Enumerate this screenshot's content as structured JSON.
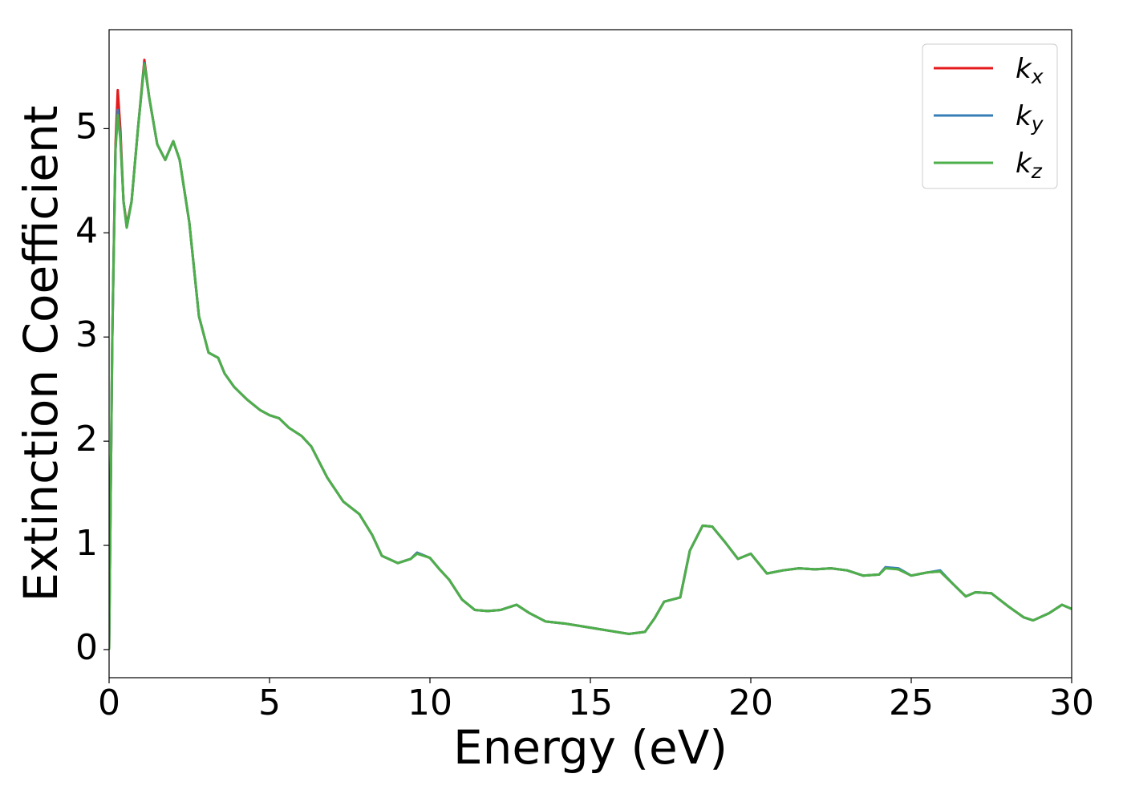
{
  "chart_data": {
    "type": "line",
    "x_label": "Energy (eV)",
    "y_label": "Extinction Coefficient",
    "x": [
      0,
      0.1,
      0.2,
      0.27,
      0.35,
      0.45,
      0.55,
      0.7,
      0.9,
      1.1,
      1.25,
      1.5,
      1.75,
      2.0,
      2.2,
      2.5,
      2.8,
      3.1,
      3.4,
      3.6,
      3.9,
      4.3,
      4.7,
      5.0,
      5.3,
      5.6,
      6.0,
      6.3,
      6.8,
      7.3,
      7.8,
      8.2,
      8.5,
      9.0,
      9.4,
      9.6,
      10.0,
      10.3,
      10.6,
      11.0,
      11.4,
      11.8,
      12.2,
      12.7,
      13.1,
      13.6,
      14.2,
      15.0,
      15.6,
      16.2,
      16.7,
      17.0,
      17.3,
      17.8,
      18.1,
      18.5,
      18.8,
      19.2,
      19.6,
      20.0,
      20.5,
      21.0,
      21.5,
      22.0,
      22.5,
      23.0,
      23.5,
      24.0,
      24.2,
      24.6,
      25.0,
      25.5,
      25.9,
      26.3,
      26.7,
      27.0,
      27.5,
      28.0,
      28.5,
      28.8,
      29.3,
      29.7,
      30.0
    ],
    "series": [
      {
        "name": "k",
        "subscript": "x",
        "color": "#e41a1c",
        "values": [
          0,
          3.0,
          4.85,
          5.37,
          5.0,
          4.3,
          4.08,
          4.3,
          5.0,
          5.66,
          5.3,
          4.85,
          4.7,
          4.88,
          4.7,
          4.1,
          3.2,
          2.85,
          2.8,
          2.65,
          2.52,
          2.4,
          2.3,
          2.25,
          2.22,
          2.13,
          2.05,
          1.95,
          1.65,
          1.42,
          1.3,
          1.1,
          0.9,
          0.83,
          0.87,
          0.93,
          0.88,
          0.77,
          0.67,
          0.48,
          0.38,
          0.37,
          0.38,
          0.43,
          0.35,
          0.27,
          0.25,
          0.21,
          0.18,
          0.15,
          0.17,
          0.3,
          0.46,
          0.5,
          0.95,
          1.19,
          1.18,
          1.03,
          0.87,
          0.92,
          0.73,
          0.76,
          0.78,
          0.77,
          0.78,
          0.76,
          0.71,
          0.72,
          0.79,
          0.77,
          0.71,
          0.74,
          0.75,
          0.63,
          0.51,
          0.55,
          0.54,
          0.42,
          0.31,
          0.28,
          0.35,
          0.43,
          0.39
        ]
      },
      {
        "name": "k",
        "subscript": "y",
        "color": "#377eb8",
        "values": [
          0,
          3.0,
          4.8,
          5.18,
          4.92,
          4.3,
          4.05,
          4.3,
          5.0,
          5.63,
          5.3,
          4.85,
          4.7,
          4.88,
          4.7,
          4.1,
          3.2,
          2.85,
          2.8,
          2.65,
          2.52,
          2.4,
          2.3,
          2.25,
          2.22,
          2.13,
          2.05,
          1.95,
          1.65,
          1.42,
          1.3,
          1.1,
          0.9,
          0.83,
          0.87,
          0.93,
          0.88,
          0.77,
          0.67,
          0.48,
          0.38,
          0.37,
          0.38,
          0.43,
          0.35,
          0.27,
          0.25,
          0.21,
          0.18,
          0.15,
          0.17,
          0.3,
          0.46,
          0.5,
          0.95,
          1.19,
          1.18,
          1.03,
          0.87,
          0.92,
          0.73,
          0.76,
          0.78,
          0.77,
          0.78,
          0.76,
          0.71,
          0.72,
          0.79,
          0.78,
          0.71,
          0.74,
          0.76,
          0.63,
          0.51,
          0.55,
          0.54,
          0.42,
          0.31,
          0.28,
          0.35,
          0.43,
          0.39
        ]
      },
      {
        "name": "k",
        "subscript": "z",
        "color": "#4daf4a",
        "values": [
          0,
          3.0,
          4.8,
          5.13,
          4.9,
          4.3,
          4.05,
          4.3,
          5.0,
          5.62,
          5.3,
          4.85,
          4.7,
          4.88,
          4.7,
          4.1,
          3.2,
          2.85,
          2.8,
          2.65,
          2.52,
          2.4,
          2.3,
          2.25,
          2.22,
          2.13,
          2.05,
          1.95,
          1.65,
          1.42,
          1.3,
          1.1,
          0.9,
          0.83,
          0.87,
          0.92,
          0.88,
          0.77,
          0.67,
          0.48,
          0.38,
          0.37,
          0.38,
          0.43,
          0.35,
          0.27,
          0.25,
          0.21,
          0.18,
          0.15,
          0.17,
          0.3,
          0.46,
          0.5,
          0.95,
          1.19,
          1.18,
          1.03,
          0.87,
          0.92,
          0.73,
          0.76,
          0.78,
          0.77,
          0.78,
          0.76,
          0.71,
          0.72,
          0.78,
          0.77,
          0.71,
          0.74,
          0.75,
          0.63,
          0.51,
          0.55,
          0.54,
          0.42,
          0.31,
          0.28,
          0.35,
          0.43,
          0.39
        ]
      }
    ],
    "xlim": [
      0,
      30
    ],
    "xticks": [
      0,
      5,
      10,
      15,
      20,
      25,
      30
    ],
    "ylim": [
      -0.27,
      5.95
    ],
    "yticks": [
      0,
      1,
      2,
      3,
      4,
      5
    ],
    "grid": false,
    "legend_position": "upper right"
  }
}
